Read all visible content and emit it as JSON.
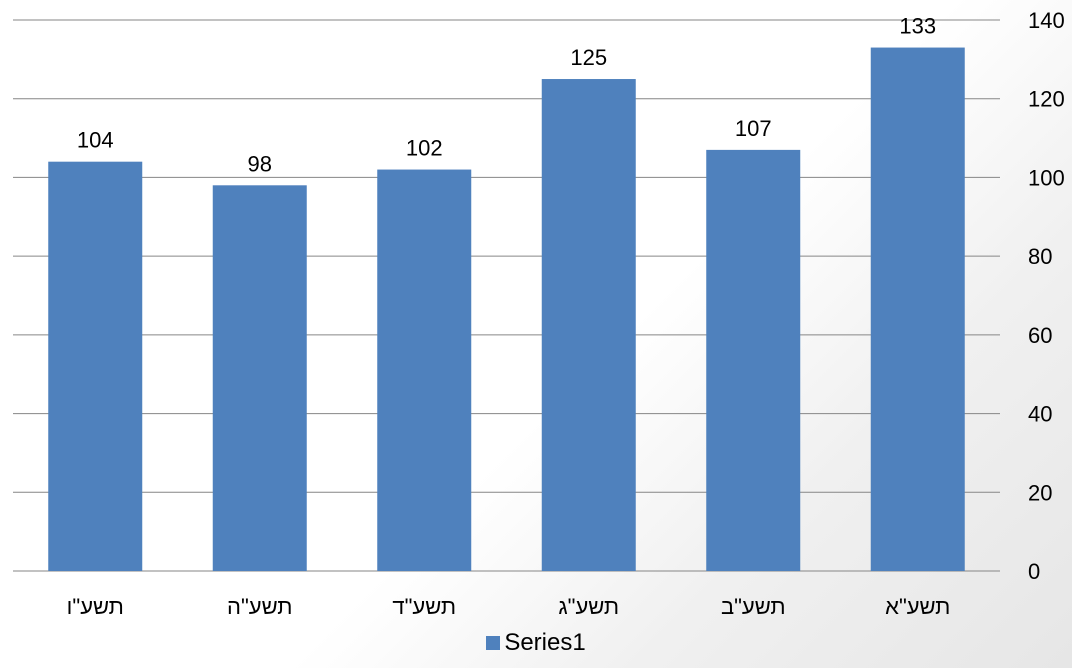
{
  "chart_data": {
    "type": "bar",
    "categories": [
      "תשע\"ו",
      "תשע\"ה",
      "תשע\"ד",
      "תשע\"ג",
      "תשע\"ב",
      "תשע\"א"
    ],
    "series": [
      {
        "name": "Series1",
        "values": [
          104,
          98,
          102,
          125,
          107,
          133
        ],
        "color": "#4f81bd"
      }
    ],
    "title": "",
    "xlabel": "",
    "ylabel": "",
    "ylim": [
      0,
      140
    ],
    "yticks": [
      "0",
      "20",
      "40",
      "60",
      "80",
      "100",
      "120",
      "140"
    ],
    "y_axis_side": "right",
    "grid": true,
    "data_labels": true,
    "legend_position": "bottom"
  }
}
